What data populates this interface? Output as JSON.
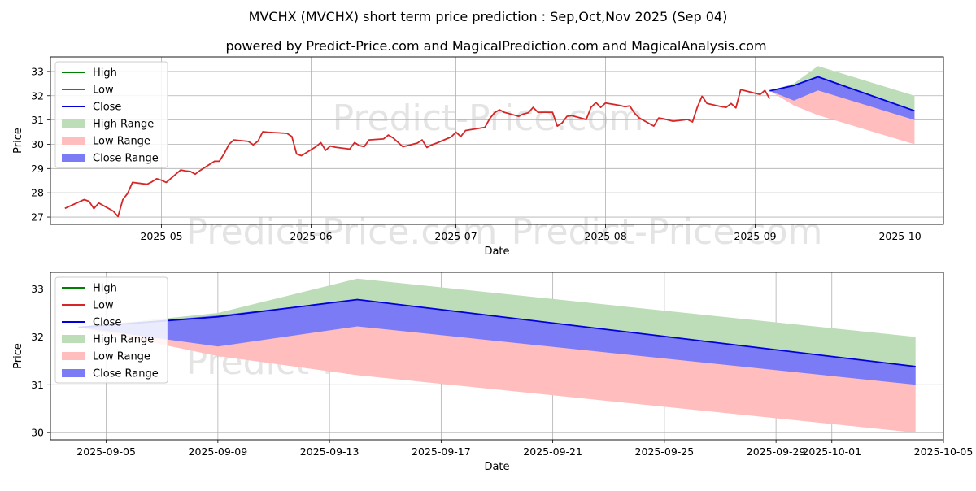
{
  "title_line1": "MVCHX (MVCHX) short term price prediction : Sep,Oct,Nov 2025 (Sep 04)",
  "title_line2": "powered by Predict-Price.com and MagicalPrediction.com and MagicalAnalysis.com",
  "watermark": "Predict-Price.com",
  "colors": {
    "high": "#008000",
    "low": "#d62728",
    "close": "#0000dd",
    "high_range": "#bcddb7",
    "low_range": "#ffbdbd",
    "close_range": "#7b7bf5"
  },
  "chart_data": [
    {
      "type": "line",
      "xlabel": "Date",
      "ylabel": "Price",
      "x_ticks": [
        "2025-05",
        "2025-06",
        "2025-07",
        "2025-08",
        "2025-09",
        "2025-10"
      ],
      "y_ticks": [
        "27",
        "28",
        "29",
        "30",
        "31",
        "32",
        "33"
      ],
      "xlim": [
        "2025-04-08",
        "2025-10-10"
      ],
      "ylim": [
        26.7,
        33.6
      ],
      "grid": true,
      "legend_position": "top-left",
      "legend": [
        "High",
        "Low",
        "Close",
        "High Range",
        "Low Range",
        "Close Range"
      ],
      "history": {
        "name": "Low",
        "x": [
          "2025-04-11",
          "2025-04-15",
          "2025-04-16",
          "2025-04-17",
          "2025-04-18",
          "2025-04-21",
          "2025-04-22",
          "2025-04-23",
          "2025-04-24",
          "2025-04-25",
          "2025-04-28",
          "2025-04-29",
          "2025-04-30",
          "2025-05-01",
          "2025-05-02",
          "2025-05-05",
          "2025-05-06",
          "2025-05-07",
          "2025-05-08",
          "2025-05-09",
          "2025-05-12",
          "2025-05-13",
          "2025-05-14",
          "2025-05-15",
          "2025-05-16",
          "2025-05-19",
          "2025-05-20",
          "2025-05-21",
          "2025-05-22",
          "2025-05-23",
          "2025-05-27",
          "2025-05-28",
          "2025-05-29",
          "2025-05-30",
          "2025-06-02",
          "2025-06-03",
          "2025-06-04",
          "2025-06-05",
          "2025-06-06",
          "2025-06-09",
          "2025-06-10",
          "2025-06-11",
          "2025-06-12",
          "2025-06-13",
          "2025-06-16",
          "2025-06-17",
          "2025-06-18",
          "2025-06-20",
          "2025-06-23",
          "2025-06-24",
          "2025-06-25",
          "2025-06-26",
          "2025-06-27",
          "2025-06-30",
          "2025-07-01",
          "2025-07-02",
          "2025-07-03",
          "2025-07-07",
          "2025-07-08",
          "2025-07-09",
          "2025-07-10",
          "2025-07-11",
          "2025-07-14",
          "2025-07-15",
          "2025-07-16",
          "2025-07-17",
          "2025-07-18",
          "2025-07-21",
          "2025-07-22",
          "2025-07-23",
          "2025-07-24",
          "2025-07-25",
          "2025-07-28",
          "2025-07-29",
          "2025-07-30",
          "2025-07-31",
          "2025-08-01",
          "2025-08-04",
          "2025-08-05",
          "2025-08-06",
          "2025-08-07",
          "2025-08-08",
          "2025-08-11",
          "2025-08-12",
          "2025-08-13",
          "2025-08-14",
          "2025-08-15",
          "2025-08-18",
          "2025-08-19",
          "2025-08-20",
          "2025-08-21",
          "2025-08-22",
          "2025-08-25",
          "2025-08-26",
          "2025-08-27",
          "2025-08-28",
          "2025-08-29",
          "2025-09-02",
          "2025-09-03",
          "2025-09-04"
        ],
        "y": [
          27.36,
          27.72,
          27.65,
          27.35,
          27.58,
          27.25,
          27.02,
          27.72,
          27.98,
          28.43,
          28.35,
          28.45,
          28.58,
          28.52,
          28.43,
          28.94,
          28.9,
          28.88,
          28.77,
          28.92,
          29.3,
          29.3,
          29.62,
          30.0,
          30.18,
          30.12,
          29.98,
          30.13,
          30.52,
          30.5,
          30.45,
          30.32,
          29.6,
          29.53,
          29.9,
          30.07,
          29.75,
          29.93,
          29.88,
          29.8,
          30.07,
          29.95,
          29.9,
          30.18,
          30.22,
          30.38,
          30.26,
          29.9,
          30.05,
          30.18,
          29.87,
          29.98,
          30.05,
          30.3,
          30.5,
          30.32,
          30.57,
          30.7,
          31.05,
          31.3,
          31.42,
          31.32,
          31.15,
          31.25,
          31.3,
          31.52,
          31.32,
          31.32,
          30.75,
          30.88,
          31.15,
          31.18,
          31.02,
          31.52,
          31.72,
          31.52,
          31.7,
          31.6,
          31.55,
          31.58,
          31.28,
          31.08,
          30.75,
          31.08,
          31.05,
          31.0,
          30.95,
          31.02,
          30.92,
          31.52,
          31.98,
          31.68,
          31.55,
          31.52,
          31.68,
          31.5,
          32.25,
          32.05,
          32.22,
          31.88
        ]
      },
      "forecast": {
        "x": [
          "2025-09-04",
          "2025-09-09",
          "2025-09-14",
          "2025-10-04"
        ],
        "high": [
          32.2,
          32.5,
          33.22,
          32.0
        ],
        "low": [
          32.2,
          31.6,
          31.2,
          30.0
        ],
        "close_range_upper": [
          32.2,
          32.45,
          32.78,
          31.38
        ],
        "close_range_lower": [
          32.2,
          31.8,
          32.22,
          31.0
        ],
        "close": [
          32.2,
          32.42,
          32.78,
          31.38
        ]
      }
    },
    {
      "type": "line",
      "xlabel": "Date",
      "ylabel": "Price",
      "x_ticks": [
        "2025-09-05",
        "2025-09-09",
        "2025-09-13",
        "2025-09-17",
        "2025-09-21",
        "2025-09-25",
        "2025-09-29",
        "2025-10-01",
        "2025-10-05"
      ],
      "y_ticks": [
        "30",
        "31",
        "32",
        "33"
      ],
      "xlim": [
        "2025-09-03",
        "2025-10-05"
      ],
      "ylim": [
        29.85,
        33.35
      ],
      "grid": true,
      "legend_position": "top-left",
      "legend": [
        "High",
        "Low",
        "Close",
        "High Range",
        "Low Range",
        "Close Range"
      ],
      "forecast": {
        "x": [
          "2025-09-04",
          "2025-09-09",
          "2025-09-14",
          "2025-10-04"
        ],
        "high": [
          32.2,
          32.5,
          33.22,
          32.0
        ],
        "low": [
          32.2,
          31.6,
          31.2,
          30.0
        ],
        "close_range_upper": [
          32.2,
          32.45,
          32.78,
          31.38
        ],
        "close_range_lower": [
          32.2,
          31.8,
          32.22,
          31.0
        ],
        "close": [
          32.2,
          32.42,
          32.78,
          31.38
        ]
      }
    }
  ]
}
